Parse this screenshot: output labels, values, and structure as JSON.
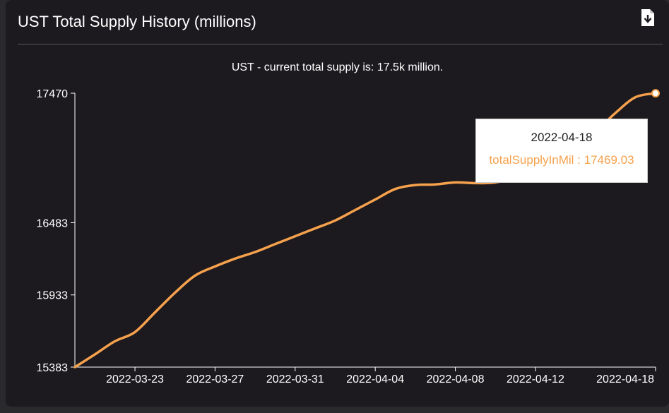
{
  "header": {
    "title": "UST Total Supply History (millions)",
    "download_icon": "file-download-icon"
  },
  "subtitle": "UST - current total supply is: 17.5k million.",
  "tooltip": {
    "date": "2022-04-18",
    "series_label": "totalSupplyInMil : 17469.03"
  },
  "colors": {
    "line": "#f6a14d",
    "background": "#1c1a1e",
    "axis": "#ffffff"
  },
  "chart_data": {
    "type": "line",
    "title": "UST - current total supply is: 17.5k million.",
    "xlabel": "",
    "ylabel": "",
    "ylim": [
      15383,
      17470
    ],
    "y_ticks": [
      "15383",
      "15933",
      "16483",
      "17470"
    ],
    "x_ticks": [
      "2022-03-23",
      "2022-03-27",
      "2022-03-31",
      "2022-04-04",
      "2022-04-08",
      "2022-04-12",
      "2022-04-18"
    ],
    "x_start": "2022-03-20",
    "x_end": "2022-04-18",
    "grid": false,
    "series": [
      {
        "name": "totalSupplyInMil",
        "x": [
          "2022-03-20",
          "2022-03-21",
          "2022-03-22",
          "2022-03-23",
          "2022-03-24",
          "2022-03-25",
          "2022-03-26",
          "2022-03-27",
          "2022-03-28",
          "2022-03-29",
          "2022-03-30",
          "2022-03-31",
          "2022-04-01",
          "2022-04-02",
          "2022-04-03",
          "2022-04-04",
          "2022-04-05",
          "2022-04-06",
          "2022-04-07",
          "2022-04-08",
          "2022-04-09",
          "2022-04-10",
          "2022-04-11",
          "2022-04-12",
          "2022-04-13",
          "2022-04-14",
          "2022-04-15",
          "2022-04-16",
          "2022-04-17",
          "2022-04-18"
        ],
        "values": [
          15383,
          15480,
          15580,
          15650,
          15800,
          15950,
          16080,
          16150,
          16210,
          16260,
          16320,
          16380,
          16440,
          16500,
          16580,
          16660,
          16740,
          16770,
          16775,
          16790,
          16785,
          16790,
          16830,
          16920,
          17000,
          17080,
          17180,
          17320,
          17440,
          17469.03
        ]
      }
    ]
  }
}
